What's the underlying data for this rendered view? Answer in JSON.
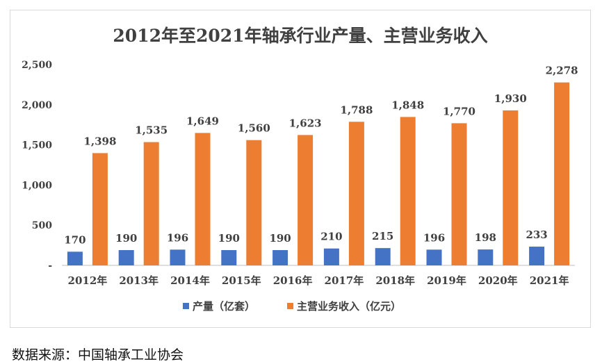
{
  "chart_data": {
    "type": "bar",
    "title": "2012年至2021年轴承行业产量、主营业务收入",
    "categories": [
      "2012年",
      "2013年",
      "2014年",
      "2015年",
      "2016年",
      "2017年",
      "2018年",
      "2019年",
      "2020年",
      "2021年"
    ],
    "series": [
      {
        "name": "产量（亿套）",
        "color": "#4472c4",
        "values": [
          170,
          190,
          196,
          190,
          190,
          210,
          215,
          196,
          198,
          233
        ]
      },
      {
        "name": "主营业务收入（亿元）",
        "color": "#ed7d31",
        "values": [
          1398,
          1535,
          1649,
          1560,
          1623,
          1788,
          1848,
          1770,
          1930,
          2278
        ]
      }
    ],
    "yticks": [
      "-",
      "500",
      "1,000",
      "1,500",
      "2,000",
      "2,500"
    ],
    "ylim": [
      0,
      2500
    ],
    "legend_position": "bottom"
  },
  "source": {
    "label": "数据来源：",
    "text": "中国轴承工业协会"
  }
}
